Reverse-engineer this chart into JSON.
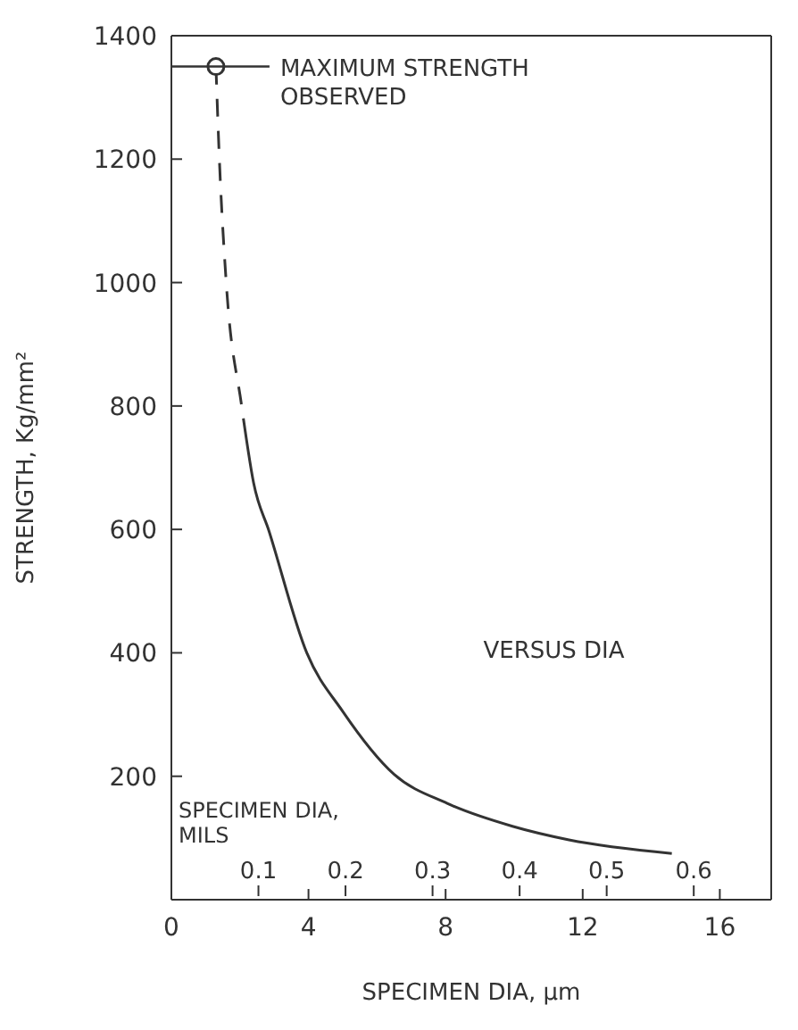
{
  "chart_data": {
    "type": "line",
    "xlabel": "SPECIMEN DIA, μm",
    "ylabel": "STRENGTH, Kg/mm²",
    "x2label": "SPECIMEN DIA, MILS",
    "xlim": [
      0,
      17.5
    ],
    "xticks": [
      0,
      4,
      8,
      12,
      16
    ],
    "x2lim": [
      0,
      0.689
    ],
    "x2ticks": [
      {
        "value": 0.1,
        "label": "0.1"
      },
      {
        "value": 0.2,
        "label": "0.2"
      },
      {
        "value": 0.3,
        "label": "0.3"
      },
      {
        "value": 0.4,
        "label": "0.4"
      },
      {
        "value": 0.5,
        "label": "0.5"
      },
      {
        "value": 0.6,
        "label": "0.6"
      }
    ],
    "ylim": [
      0,
      1400
    ],
    "yticks": [
      200,
      400,
      600,
      800,
      1000,
      1200,
      1400
    ],
    "series": [
      {
        "line_style": "dashed",
        "marker": "none",
        "color": "#333333",
        "x": [
          1.3,
          1.4,
          1.6,
          2.05,
          2.1
        ],
        "values": [
          1350,
          1200,
          1000,
          800,
          780
        ]
      },
      {
        "line_style": "solid",
        "marker": "none",
        "color": "#333333",
        "x": [
          2.1,
          2.4,
          2.85,
          3.95,
          5.0,
          6.5,
          8.05,
          9.95,
          11.6,
          14.6
        ],
        "values": [
          780,
          675,
          597,
          400,
          305,
          203,
          156,
          119,
          97,
          75
        ]
      },
      {
        "type": "scatter",
        "marker": "circle",
        "color": "#333333",
        "x": [
          1.3
        ],
        "values": [
          1350
        ]
      }
    ],
    "annotations": [
      {
        "text": "MAXIMUM STRENGTH OBSERVED",
        "x": 1.3,
        "y": 1350
      },
      "VERSUS DIA"
    ]
  }
}
